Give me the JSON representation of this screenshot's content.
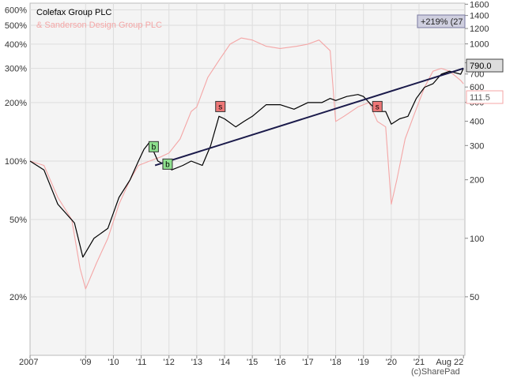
{
  "chart_data": {
    "type": "line",
    "log_scale": true,
    "grid": true,
    "legend_position": "top-left",
    "x_ticks": [
      "2007",
      "'09",
      "'10",
      "'11",
      "'12",
      "'13",
      "'14",
      "'15",
      "'16",
      "'17",
      "'18",
      "'19",
      "'20",
      "'21",
      "Aug 22"
    ],
    "left_axis": {
      "ticks": [
        "600%",
        "500%",
        "400%",
        "300%",
        "200%",
        "100%",
        "50%",
        "20%"
      ],
      "values": [
        600,
        500,
        400,
        300,
        200,
        100,
        50,
        20
      ],
      "range": [
        10,
        650
      ]
    },
    "right_axis": {
      "ticks": [
        "1600",
        "1400",
        "1200",
        "1000",
        "800",
        "700",
        "600",
        "500",
        "400",
        "300",
        "200",
        "100",
        "50"
      ],
      "values": [
        1600,
        1400,
        1200,
        1000,
        800,
        700,
        600,
        500,
        400,
        300,
        200,
        100,
        50
      ],
      "range": [
        25,
        1620
      ]
    },
    "series": [
      {
        "name": "Colefax Group PLC",
        "color": "#000000",
        "x": [
          2007.0,
          2007.5,
          2008.0,
          2008.6,
          2008.9,
          2009.3,
          2009.8,
          2010.2,
          2010.6,
          2010.9,
          2011.1,
          2011.3,
          2011.6,
          2011.9,
          2012.1,
          2012.5,
          2012.8,
          2013.2,
          2013.5,
          2013.8,
          2014.0,
          2014.4,
          2014.7,
          2015.0,
          2015.5,
          2016.0,
          2016.5,
          2017.0,
          2017.5,
          2017.8,
          2018.0,
          2018.4,
          2018.8,
          2019.0,
          2019.5,
          2019.8,
          2020.0,
          2020.3,
          2020.6,
          2020.9,
          2021.2,
          2021.5,
          2021.8,
          2022.1,
          2022.5,
          2022.6
        ],
        "values": [
          100,
          90,
          60,
          48,
          32,
          40,
          45,
          65,
          80,
          100,
          115,
          125,
          100,
          95,
          90,
          95,
          100,
          95,
          120,
          170,
          165,
          150,
          160,
          170,
          195,
          195,
          185,
          200,
          200,
          210,
          205,
          215,
          220,
          215,
          180,
          180,
          155,
          165,
          170,
          210,
          240,
          250,
          280,
          290,
          280,
          300
        ]
      },
      {
        "name": "& Sanderson Design Group PLC",
        "color": "#f4a6a6",
        "x": [
          2007.0,
          2007.5,
          2008.0,
          2008.5,
          2008.8,
          2009.0,
          2009.4,
          2009.8,
          2010.2,
          2010.6,
          2010.9,
          2011.3,
          2011.7,
          2012.0,
          2012.4,
          2012.8,
          2013.0,
          2013.4,
          2013.8,
          2014.2,
          2014.6,
          2015.0,
          2015.5,
          2016.0,
          2016.6,
          2017.0,
          2017.4,
          2017.8,
          2018.0,
          2018.3,
          2018.8,
          2019.2,
          2019.5,
          2019.8,
          2020.0,
          2020.2,
          2020.5,
          2020.8,
          2021.2,
          2021.5,
          2021.8,
          2022.1,
          2022.5,
          2022.6
        ],
        "values": [
          100,
          95,
          65,
          50,
          28,
          22,
          30,
          40,
          60,
          80,
          95,
          100,
          105,
          110,
          130,
          180,
          190,
          270,
          330,
          400,
          430,
          420,
          390,
          380,
          390,
          400,
          420,
          370,
          160,
          170,
          190,
          200,
          160,
          150,
          60,
          80,
          130,
          170,
          240,
          290,
          300,
          290,
          260,
          250
        ]
      }
    ],
    "trendline": {
      "color": "#1a1a4a",
      "x": [
        2011.5,
        2022.6
      ],
      "values": [
        95,
        300
      ]
    },
    "markers": [
      {
        "label": "b",
        "x": 2011.45,
        "value": 118,
        "type": "buy"
      },
      {
        "label": "b",
        "x": 2011.95,
        "value": 96,
        "type": "buy"
      },
      {
        "label": "s",
        "x": 2013.85,
        "value": 190,
        "type": "sell"
      },
      {
        "label": "s",
        "x": 2019.5,
        "value": 190,
        "type": "sell"
      }
    ],
    "labels": {
      "pct_change": "+219% (27",
      "last_price": "790.0",
      "other_price": "111.5"
    },
    "watermark": "(c)SharePad"
  }
}
